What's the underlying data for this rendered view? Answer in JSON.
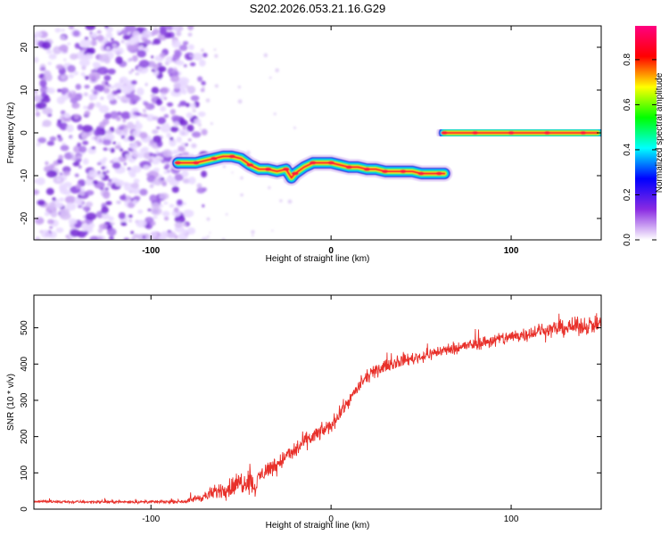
{
  "title": "S202.2026.053.21.16.G29",
  "chart_data": [
    {
      "type": "heatmap",
      "title": "S202.2026.053.21.16.G29",
      "xlabel": "Height of straight line (km)",
      "ylabel": "Frequency (Hz)",
      "xlim": [
        -165,
        150
      ],
      "ylim": [
        -25,
        25
      ],
      "x_ticks": [
        "-100",
        "0",
        "100"
      ],
      "x_tick_values": [
        -100,
        0,
        100
      ],
      "y_ticks": [
        "20",
        "10",
        "0",
        "-10",
        "-20"
      ],
      "y_tick_values": [
        20,
        10,
        0,
        -10,
        -20
      ],
      "colorbar": {
        "label": "Normalized spectral amplitude",
        "range": [
          0,
          0.95
        ],
        "ticks": [
          "0.0",
          "0.2",
          "0.4",
          "0.6",
          "0.8"
        ],
        "tick_values": [
          0.0,
          0.2,
          0.4,
          0.6,
          0.8
        ],
        "colors": [
          "#ffffff",
          "#8a2be2",
          "#0000ff",
          "#00ffff",
          "#00ff00",
          "#ffff00",
          "#ff0000",
          "#ff0080"
        ]
      },
      "noise_region": {
        "x_from": -165,
        "x_to": -80,
        "freq_from": -25,
        "freq_to": 25
      },
      "ridge": {
        "x": [
          -85,
          -80,
          -75,
          -70,
          -65,
          -60,
          -55,
          -50,
          -45,
          -40,
          -35,
          -30,
          -25,
          -22,
          -20,
          -15,
          -10,
          -5,
          0,
          5,
          10,
          15,
          20,
          25,
          30,
          35,
          40,
          45,
          50,
          55,
          60,
          63
        ],
        "freq": [
          -7,
          -7,
          -7,
          -6.5,
          -6,
          -5.5,
          -5.5,
          -6,
          -7.5,
          -8.5,
          -8.5,
          -9,
          -8.5,
          -10.5,
          -9.5,
          -8,
          -7,
          -7,
          -7,
          -7.5,
          -8,
          -8,
          -8.5,
          -8.5,
          -9,
          -9,
          -9,
          -9,
          -9.5,
          -9.5,
          -9.5,
          -9.5
        ]
      },
      "ridge2": {
        "x": [
          63,
          70,
          80,
          90,
          100,
          110,
          120,
          130,
          140,
          148
        ],
        "freq": [
          0,
          0,
          0,
          0,
          0,
          0,
          0,
          0,
          0,
          0
        ]
      }
    },
    {
      "type": "line",
      "xlabel": "Height of straight line (km)",
      "ylabel": "SNR (10 * v/v)",
      "xlim": [
        -165,
        150
      ],
      "ylim": [
        0,
        590
      ],
      "x_ticks": [
        "-100",
        "0",
        "100"
      ],
      "x_tick_values": [
        -100,
        0,
        100
      ],
      "y_ticks": [
        "0",
        "100",
        "200",
        "300",
        "400",
        "500"
      ],
      "y_tick_values": [
        0,
        100,
        200,
        300,
        400,
        500
      ],
      "series": [
        {
          "name": "SNR",
          "color": "#e8302a",
          "x": [
            -165,
            -150,
            -130,
            -110,
            -100,
            -90,
            -80,
            -75,
            -70,
            -65,
            -60,
            -55,
            -50,
            -45,
            -42,
            -40,
            -35,
            -30,
            -25,
            -20,
            -15,
            -10,
            -5,
            0,
            5,
            10,
            15,
            20,
            25,
            30,
            40,
            50,
            60,
            70,
            80,
            90,
            100,
            110,
            120,
            130,
            140,
            150
          ],
          "values": [
            22,
            20,
            20,
            20,
            20,
            20,
            22,
            30,
            35,
            45,
            55,
            60,
            75,
            80,
            55,
            90,
            110,
            125,
            145,
            160,
            185,
            200,
            215,
            230,
            265,
            300,
            335,
            365,
            380,
            395,
            410,
            420,
            435,
            445,
            455,
            465,
            475,
            485,
            495,
            500,
            505,
            510
          ],
          "noise_amplitude": [
            6,
            6,
            6,
            6,
            6,
            6,
            8,
            15,
            20,
            30,
            35,
            45,
            50,
            50,
            30,
            35,
            35,
            35,
            35,
            35,
            35,
            35,
            30,
            30,
            30,
            25,
            25,
            25,
            25,
            25,
            25,
            25,
            25,
            25,
            25,
            30,
            30,
            30,
            30,
            35,
            35,
            35
          ]
        }
      ]
    }
  ]
}
